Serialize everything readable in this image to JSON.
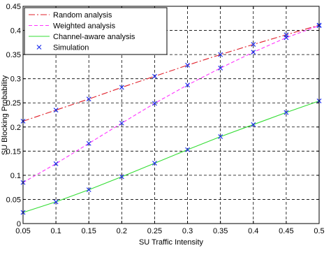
{
  "chart_data": {
    "type": "line",
    "title": "",
    "xlabel": "SU Traffic Intensity",
    "ylabel": "SU Blocking Probability",
    "xlim": [
      0.05,
      0.5
    ],
    "ylim": [
      0,
      0.45
    ],
    "xticks": [
      "0.05",
      "0.1",
      "0.15",
      "0.2",
      "0.25",
      "0.3",
      "0.35",
      "0.4",
      "0.45",
      "0.5"
    ],
    "yticks": [
      "0",
      "0.05",
      "0.1",
      "0.15",
      "0.2",
      "0.25",
      "0.3",
      "0.35",
      "0.4",
      "0.45"
    ],
    "grid": true,
    "legend_position": "top-left",
    "x": [
      0.05,
      0.1,
      0.15,
      0.2,
      0.25,
      0.3,
      0.35,
      0.4,
      0.45,
      0.5
    ],
    "series": [
      {
        "name": "Random analysis",
        "style": "dash-dot",
        "color": "#e0202a",
        "values": [
          0.212,
          0.235,
          0.258,
          0.282,
          0.305,
          0.328,
          0.35,
          0.371,
          0.391,
          0.411
        ]
      },
      {
        "name": "Weighted analysis",
        "style": "dashed",
        "color": "#ff33ff",
        "values": [
          0.085,
          0.124,
          0.166,
          0.208,
          0.249,
          0.287,
          0.322,
          0.355,
          0.385,
          0.41
        ]
      },
      {
        "name": "Channel-aware analysis",
        "style": "solid",
        "color": "#33dd33",
        "values": [
          0.023,
          0.045,
          0.07,
          0.097,
          0.125,
          0.153,
          0.18,
          0.205,
          0.23,
          0.254
        ]
      }
    ],
    "simulation": {
      "name": "Simulation",
      "marker": "x",
      "color": "#2233ee"
    }
  }
}
